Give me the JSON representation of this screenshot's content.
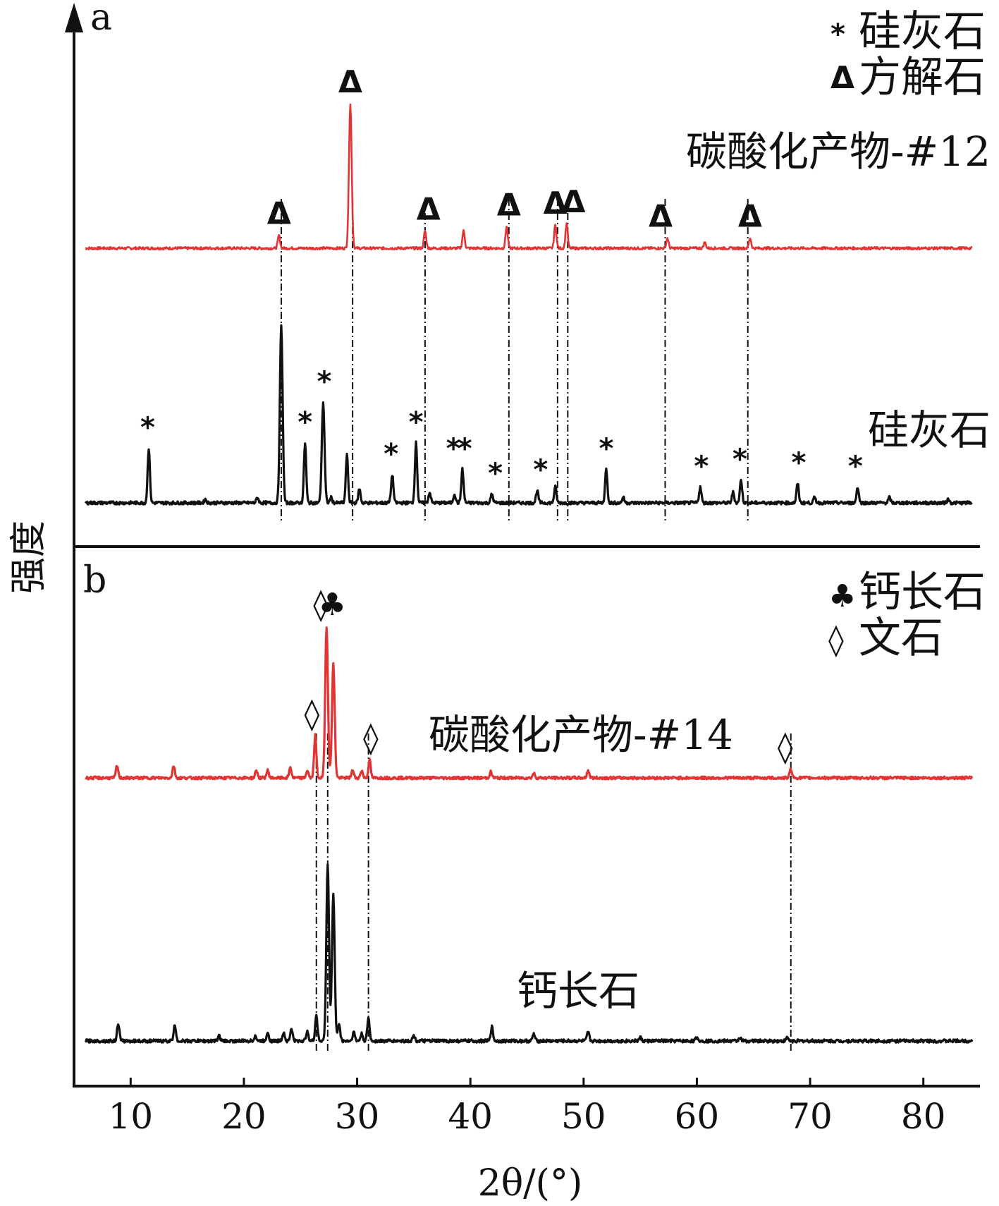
{
  "chart_data": {
    "type": "line",
    "xlabel": "2θ/(°)",
    "ylabel": "强度",
    "xlim": [
      5,
      85
    ],
    "xticks": [
      10,
      20,
      30,
      40,
      50,
      60,
      70,
      80
    ],
    "colors": {
      "product": "#e03535",
      "mineral": "#111111"
    },
    "panels": [
      {
        "label": "a",
        "legend": [
          {
            "symbol": "*",
            "text": "硅灰石"
          },
          {
            "symbol": "Δ",
            "text": "方解石"
          }
        ],
        "series": [
          {
            "name": "碳酸化产物-#12",
            "color": "#e03535",
            "peaks": [
              {
                "x": 23.1,
                "h": 0.09
              },
              {
                "x": 29.4,
                "h": 1.0
              },
              {
                "x": 36.0,
                "h": 0.12
              },
              {
                "x": 39.4,
                "h": 0.12
              },
              {
                "x": 43.2,
                "h": 0.15
              },
              {
                "x": 47.5,
                "h": 0.16
              },
              {
                "x": 48.5,
                "h": 0.17
              },
              {
                "x": 57.4,
                "h": 0.07
              },
              {
                "x": 60.7,
                "h": 0.04
              },
              {
                "x": 64.7,
                "h": 0.07
              }
            ],
            "markers": [
              {
                "x": 23.1,
                "symbol": "Δ"
              },
              {
                "x": 29.4,
                "symbol": "Δ"
              },
              {
                "x": 36.3,
                "symbol": "Δ"
              },
              {
                "x": 43.4,
                "symbol": "Δ"
              },
              {
                "x": 47.5,
                "symbol": "Δ"
              },
              {
                "x": 49.1,
                "symbol": "Δ"
              },
              {
                "x": 56.8,
                "symbol": "Δ"
              },
              {
                "x": 64.7,
                "symbol": "Δ"
              }
            ]
          },
          {
            "name": "硅灰石",
            "color": "#111111",
            "peaks": [
              {
                "x": 11.6,
                "h": 0.31
              },
              {
                "x": 16.6,
                "h": 0.02
              },
              {
                "x": 21.2,
                "h": 0.03
              },
              {
                "x": 23.3,
                "h": 1.0
              },
              {
                "x": 25.4,
                "h": 0.34
              },
              {
                "x": 27.0,
                "h": 0.57
              },
              {
                "x": 27.7,
                "h": 0.03
              },
              {
                "x": 29.1,
                "h": 0.27
              },
              {
                "x": 30.2,
                "h": 0.08
              },
              {
                "x": 33.1,
                "h": 0.16
              },
              {
                "x": 35.2,
                "h": 0.34
              },
              {
                "x": 36.4,
                "h": 0.06
              },
              {
                "x": 38.6,
                "h": 0.05
              },
              {
                "x": 39.3,
                "h": 0.19
              },
              {
                "x": 41.9,
                "h": 0.05
              },
              {
                "x": 45.9,
                "h": 0.07
              },
              {
                "x": 47.5,
                "h": 0.09
              },
              {
                "x": 52.0,
                "h": 0.19
              },
              {
                "x": 53.5,
                "h": 0.03
              },
              {
                "x": 60.3,
                "h": 0.09
              },
              {
                "x": 63.2,
                "h": 0.06
              },
              {
                "x": 63.9,
                "h": 0.13
              },
              {
                "x": 68.9,
                "h": 0.11
              },
              {
                "x": 70.4,
                "h": 0.03
              },
              {
                "x": 74.2,
                "h": 0.09
              },
              {
                "x": 77.0,
                "h": 0.03
              },
              {
                "x": 82.2,
                "h": 0.02
              }
            ],
            "markers": [
              {
                "x": 11.5,
                "symbol": "*"
              },
              {
                "x": 25.4,
                "symbol": "*"
              },
              {
                "x": 27.1,
                "symbol": "*"
              },
              {
                "x": 33.0,
                "symbol": "*"
              },
              {
                "x": 35.2,
                "symbol": "*"
              },
              {
                "x": 38.5,
                "symbol": "*"
              },
              {
                "x": 39.5,
                "symbol": "*"
              },
              {
                "x": 42.2,
                "symbol": "*"
              },
              {
                "x": 46.2,
                "symbol": "*"
              },
              {
                "x": 52.0,
                "symbol": "*"
              },
              {
                "x": 60.4,
                "symbol": "*"
              },
              {
                "x": 63.8,
                "symbol": "*"
              },
              {
                "x": 69.0,
                "symbol": "*"
              },
              {
                "x": 74.0,
                "symbol": "*"
              }
            ]
          }
        ],
        "reference_lines": [
          23.3,
          29.6,
          36.0,
          43.4,
          47.7,
          48.6,
          57.2,
          64.5
        ]
      },
      {
        "label": "b",
        "legend": [
          {
            "symbol": "♣",
            "text": "钙长石"
          },
          {
            "symbol": "◊",
            "text": "文石"
          }
        ],
        "series": [
          {
            "name": "碳酸化产物-#14",
            "color": "#e03535",
            "peaks": [
              {
                "x": 8.8,
                "h": 0.08
              },
              {
                "x": 13.8,
                "h": 0.08
              },
              {
                "x": 21.1,
                "h": 0.05
              },
              {
                "x": 22.1,
                "h": 0.05
              },
              {
                "x": 24.1,
                "h": 0.07
              },
              {
                "x": 25.6,
                "h": 0.05
              },
              {
                "x": 26.3,
                "h": 0.28
              },
              {
                "x": 27.3,
                "h": 1.0
              },
              {
                "x": 27.9,
                "h": 0.75
              },
              {
                "x": 29.6,
                "h": 0.05
              },
              {
                "x": 30.4,
                "h": 0.05
              },
              {
                "x": 31.1,
                "h": 0.12
              },
              {
                "x": 41.8,
                "h": 0.04
              },
              {
                "x": 45.6,
                "h": 0.03
              },
              {
                "x": 50.4,
                "h": 0.05
              },
              {
                "x": 68.3,
                "h": 0.06
              }
            ],
            "markers": [
              {
                "x": 26.8,
                "symbol": "◊"
              },
              {
                "x": 27.8,
                "symbol": "♣"
              },
              {
                "x": 26.0,
                "symbol": "◊"
              },
              {
                "x": 31.2,
                "symbol": "◊"
              },
              {
                "x": 67.8,
                "symbol": "◊"
              }
            ]
          },
          {
            "name": "钙长石",
            "color": "#111111",
            "peaks": [
              {
                "x": 8.9,
                "h": 0.1
              },
              {
                "x": 13.9,
                "h": 0.09
              },
              {
                "x": 17.8,
                "h": 0.03
              },
              {
                "x": 21.0,
                "h": 0.03
              },
              {
                "x": 22.1,
                "h": 0.05
              },
              {
                "x": 23.5,
                "h": 0.05
              },
              {
                "x": 24.2,
                "h": 0.07
              },
              {
                "x": 25.6,
                "h": 0.06
              },
              {
                "x": 26.4,
                "h": 0.15
              },
              {
                "x": 27.4,
                "h": 1.0
              },
              {
                "x": 27.9,
                "h": 0.83
              },
              {
                "x": 28.4,
                "h": 0.1
              },
              {
                "x": 29.7,
                "h": 0.05
              },
              {
                "x": 30.4,
                "h": 0.04
              },
              {
                "x": 31.0,
                "h": 0.13
              },
              {
                "x": 35.0,
                "h": 0.03
              },
              {
                "x": 41.9,
                "h": 0.08
              },
              {
                "x": 45.6,
                "h": 0.04
              },
              {
                "x": 50.4,
                "h": 0.05
              },
              {
                "x": 55.0,
                "h": 0.02
              },
              {
                "x": 60.0,
                "h": 0.02
              },
              {
                "x": 63.8,
                "h": 0.02
              },
              {
                "x": 68.0,
                "h": 0.02
              }
            ],
            "markers": []
          }
        ],
        "reference_lines": [
          26.4,
          27.4,
          31.0,
          68.3
        ]
      }
    ]
  }
}
